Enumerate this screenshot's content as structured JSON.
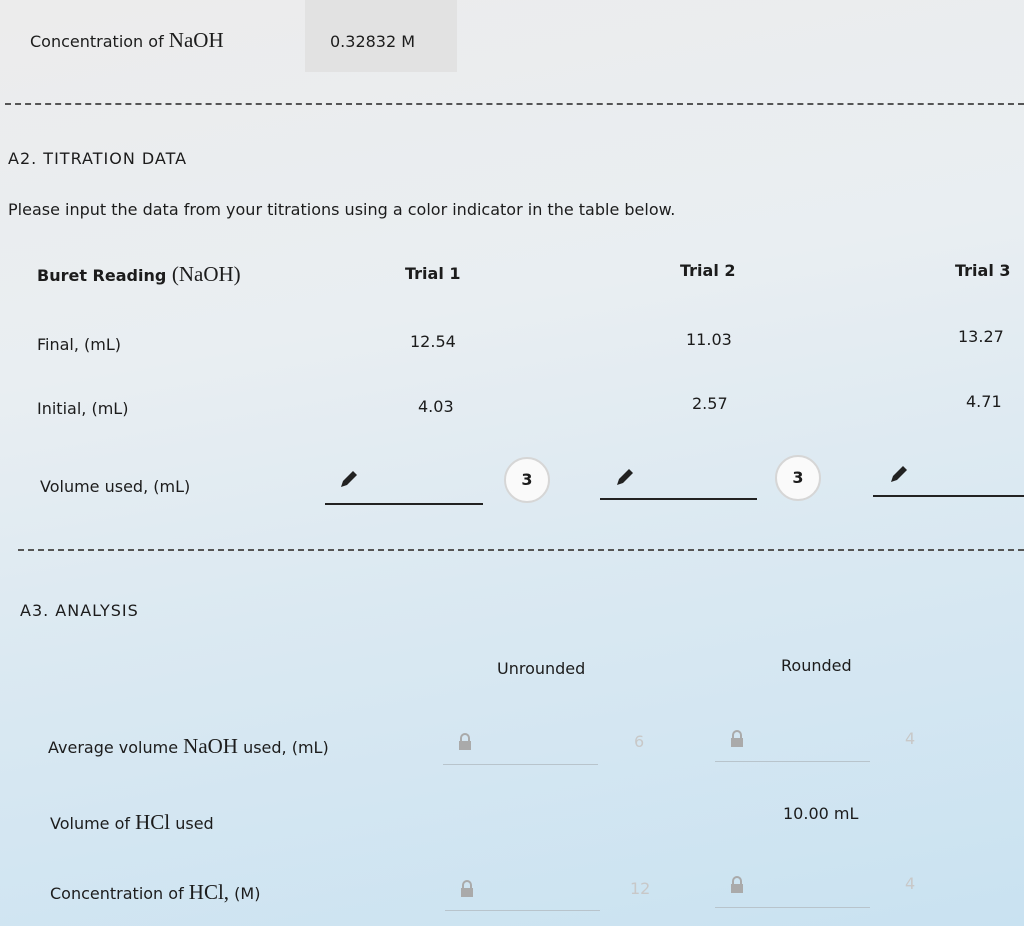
{
  "header": {
    "label": "Concentration of",
    "chem": "NaOH",
    "value": "0.32832 M"
  },
  "titration": {
    "title": "A2. TITRATION DATA",
    "instruction": "Please input the data from your titrations using a color indicator in the table below.",
    "table": {
      "header": {
        "label": "Buret Reading",
        "chem": "(NaOH)",
        "trials": [
          "Trial 1",
          "Trial 2",
          "Trial 3"
        ]
      },
      "rows": [
        {
          "label": "Final, (mL)",
          "values": [
            "12.54",
            "11.03",
            "13.27"
          ]
        },
        {
          "label": "Initial, (mL)",
          "values": [
            "4.03",
            "2.57",
            "4.71"
          ]
        }
      ],
      "volume_used": {
        "label": "Volume used, (mL)",
        "badges": [
          "3",
          "3"
        ]
      }
    }
  },
  "analysis": {
    "title": "A3. ANALYSIS",
    "columns": [
      "Unrounded",
      "Rounded"
    ],
    "rows": [
      {
        "label_pre": "Average volume",
        "chem": "NaOH",
        "label_post": "used, (mL)",
        "hints": [
          "6",
          "4"
        ]
      },
      {
        "label_pre": "Volume of",
        "chem": "HCl",
        "label_post": "used",
        "value": "10.00 mL"
      },
      {
        "label_pre": "Concentration of",
        "chem": "HCl,",
        "label_post": "(M)",
        "hints": [
          "12",
          "4"
        ]
      }
    ]
  }
}
